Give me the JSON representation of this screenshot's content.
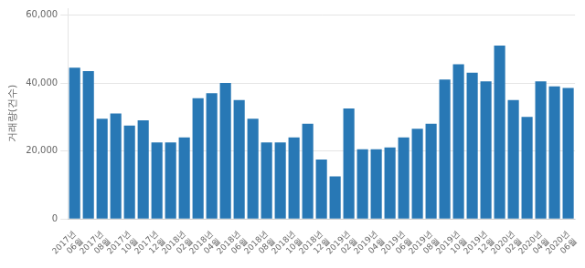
{
  "chart_data": {
    "type": "bar",
    "ylabel": "거래량(건수)",
    "categories": [
      "2017년\n06월",
      null,
      "2017년\n08월",
      null,
      "2017년\n10월",
      null,
      "2017년\n12월",
      null,
      "2018년\n02월",
      null,
      "2018년\n04월",
      null,
      "2018년\n06월",
      null,
      "2018년\n08월",
      null,
      "2018년\n10월",
      null,
      "2018년\n12월",
      null,
      "2019년\n02월",
      null,
      "2019년\n04월",
      null,
      "2019년\n06월",
      null,
      "2019년\n08월",
      null,
      "2019년\n10월",
      null,
      "2019년\n12월",
      null,
      "2020년\n02월",
      null,
      "2020년\n04월",
      null,
      "2020년\n06월"
    ],
    "values": [
      44500,
      43500,
      29500,
      31000,
      27500,
      29000,
      22500,
      22500,
      24000,
      35500,
      37000,
      40000,
      35000,
      29500,
      22500,
      22500,
      24000,
      28000,
      17500,
      12500,
      32500,
      20500,
      20500,
      21000,
      24000,
      26500,
      28000,
      41000,
      45500,
      43000,
      40500,
      51000,
      35000,
      30000,
      40500,
      39000,
      38500
    ],
    "color": "#2878b5",
    "ylim": [
      0,
      62000
    ],
    "yticks": [
      0,
      {
        "value": 20000,
        "label": "20,000"
      },
      {
        "value": 40000,
        "label": "40,000"
      },
      {
        "value": 60000,
        "label": "60,000"
      }
    ],
    "grid": true
  }
}
